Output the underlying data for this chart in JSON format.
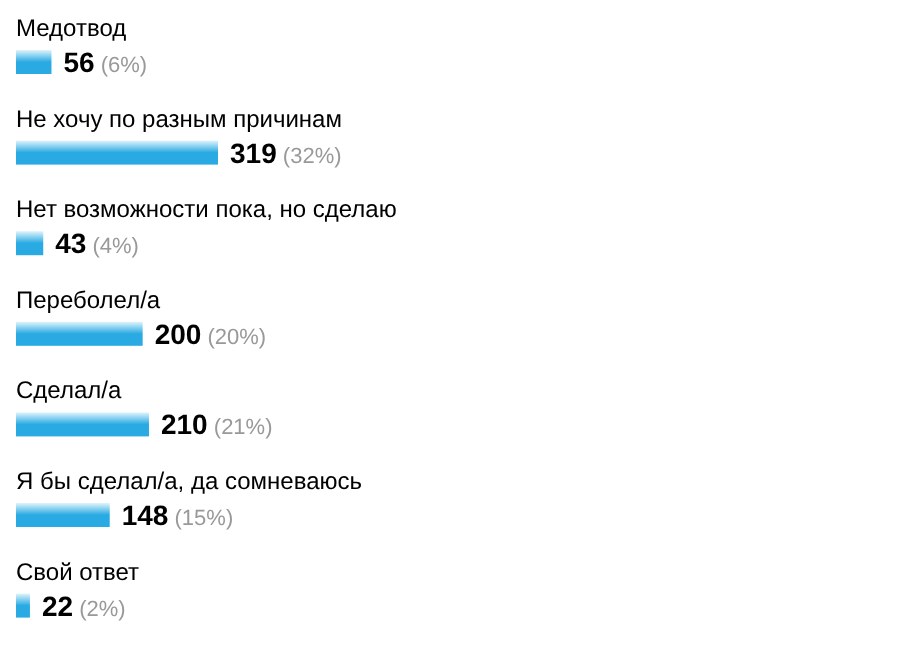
{
  "chart_data": {
    "type": "bar",
    "orientation": "horizontal",
    "categories": [
      "Медотвод",
      "Не хочу по разным причинам",
      "Нет возможности пока, но сделаю",
      "Переболел/а",
      "Сделал/а",
      "Я бы сделал/а, да сомневаюсь",
      "Свой ответ"
    ],
    "values": [
      56,
      319,
      43,
      200,
      210,
      148,
      22
    ],
    "color": "#29aae2",
    "value_labels": [
      "56 (6%)",
      "319 (32%)",
      "43 (4%)",
      "200 (20%)",
      "210 (21%)",
      "148 (15%)",
      "22 (2%)"
    ]
  }
}
